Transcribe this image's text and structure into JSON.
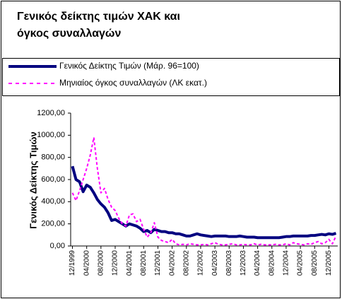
{
  "chart_data": {
    "type": "line",
    "title": [
      "Γενικός δείκτης τιμών ΧΑΚ και",
      "όγκος συναλλαγών"
    ],
    "y_label": "Γενικός Δείκτης Τιμών",
    "categories": [
      "12/1999",
      null,
      null,
      null,
      "04/2000",
      null,
      null,
      null,
      "08/2000",
      null,
      null,
      null,
      "12/2000",
      null,
      null,
      null,
      "04/2001",
      null,
      null,
      null,
      "08/2001",
      null,
      null,
      null,
      "12/2001",
      null,
      null,
      null,
      "04/2002",
      null,
      null,
      null,
      "08/2002",
      null,
      null,
      null,
      "12/2002",
      null,
      null,
      null,
      "04/2003",
      null,
      null,
      null,
      "08/2003",
      null,
      null,
      null,
      "12/2003",
      null,
      null,
      null,
      "04/2004",
      null,
      null,
      null,
      "08/2004",
      null,
      null,
      null,
      "12/2004",
      null,
      null,
      null,
      "04/2005",
      null,
      null,
      null,
      "08/2005",
      null,
      null,
      null,
      "12/2005",
      null,
      null
    ],
    "series": [
      {
        "name": "Γενικός Δείκτης Τιμών (Μάρ. 96=100)",
        "color": "#000080",
        "dashed": false,
        "values": [
          720,
          600,
          580,
          490,
          550,
          530,
          480,
          420,
          380,
          350,
          300,
          230,
          240,
          220,
          200,
          180,
          200,
          190,
          180,
          160,
          130,
          140,
          120,
          150,
          140,
          130,
          130,
          120,
          120,
          110,
          110,
          100,
          90,
          90,
          100,
          110,
          100,
          95,
          90,
          85,
          90,
          90,
          90,
          90,
          85,
          85,
          85,
          90,
          85,
          80,
          80,
          80,
          75,
          75,
          75,
          75,
          75,
          75,
          75,
          80,
          85,
          85,
          90,
          90,
          90,
          90,
          90,
          95,
          95,
          100,
          105,
          100,
          110,
          105,
          115
        ]
      },
      {
        "name": "Μηνιαίος όγκος συναλλαγών (ΛΚ εκατ.)",
        "color": "#ff00ff",
        "dashed": true,
        "values": [
          480,
          410,
          500,
          600,
          700,
          820,
          980,
          700,
          480,
          520,
          420,
          350,
          320,
          250,
          200,
          180,
          280,
          290,
          220,
          240,
          150,
          80,
          120,
          210,
          80,
          50,
          40,
          30,
          60,
          20,
          10,
          15,
          10,
          20,
          15,
          10,
          10,
          15,
          10,
          20,
          30,
          15,
          10,
          10,
          15,
          20,
          10,
          10,
          15,
          10,
          10,
          20,
          10,
          15,
          10,
          10,
          10,
          15,
          10,
          10,
          20,
          10,
          30,
          20,
          15,
          10,
          20,
          15,
          30,
          40,
          20,
          30,
          60,
          20,
          90
        ]
      }
    ],
    "ylim": [
      0,
      1200
    ],
    "yticks": [
      {
        "value": 0,
        "label": "0,00"
      },
      {
        "value": 200,
        "label": "200,00"
      },
      {
        "value": 400,
        "label": "400,00"
      },
      {
        "value": 600,
        "label": "600,00"
      },
      {
        "value": 800,
        "label": "800,00"
      },
      {
        "value": 1000,
        "label": "1000,00"
      },
      {
        "value": 1200,
        "label": "1200,00"
      }
    ]
  }
}
